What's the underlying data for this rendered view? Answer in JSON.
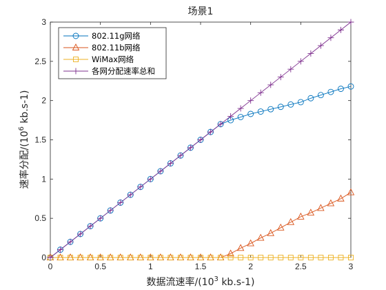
{
  "chart_data": {
    "type": "line",
    "title": "场景1",
    "xlabel": {
      "prefix": "数据流速率/(10",
      "sup": "3",
      "suffix": " kb.s-1)"
    },
    "ylabel": {
      "prefix": "速率分配/(10",
      "sup": "6",
      "suffix": " kb.s-1)"
    },
    "xlim": [
      0,
      3
    ],
    "ylim": [
      0,
      3
    ],
    "xticks": [
      0,
      0.5,
      1,
      1.5,
      2,
      2.5,
      3
    ],
    "yticks": [
      0,
      0.5,
      1,
      1.5,
      2,
      2.5,
      3
    ],
    "x": [
      0,
      0.1,
      0.2,
      0.3,
      0.4,
      0.5,
      0.6,
      0.7,
      0.8,
      0.9,
      1.0,
      1.1,
      1.2,
      1.3,
      1.4,
      1.5,
      1.6,
      1.7,
      1.8,
      1.9,
      2.0,
      2.1,
      2.2,
      2.3,
      2.4,
      2.5,
      2.6,
      2.7,
      2.8,
      2.9,
      3.0
    ],
    "series": [
      {
        "name": "802.11g网络",
        "color": "#0072BD",
        "marker": "circle",
        "values": [
          0,
          0.1,
          0.2,
          0.3,
          0.4,
          0.5,
          0.6,
          0.7,
          0.8,
          0.9,
          1.0,
          1.1,
          1.2,
          1.3,
          1.4,
          1.5,
          1.6,
          1.7,
          1.75,
          1.79,
          1.83,
          1.86,
          1.89,
          1.92,
          1.95,
          1.98,
          2.03,
          2.07,
          2.11,
          2.15,
          2.18
        ]
      },
      {
        "name": "802.11b网络",
        "color": "#D95319",
        "marker": "triangle",
        "values": [
          0,
          0,
          0,
          0,
          0,
          0,
          0,
          0,
          0,
          0,
          0,
          0,
          0,
          0,
          0,
          0,
          0,
          0,
          0.05,
          0.12,
          0.18,
          0.25,
          0.31,
          0.38,
          0.45,
          0.52,
          0.57,
          0.63,
          0.69,
          0.75,
          0.83
        ]
      },
      {
        "name": "WiMax网络",
        "color": "#EDB120",
        "marker": "square",
        "values": [
          0,
          0,
          0,
          0,
          0,
          0,
          0,
          0,
          0,
          0,
          0,
          0,
          0,
          0,
          0,
          0,
          0,
          0,
          0,
          0,
          0,
          0,
          0,
          0,
          0,
          0,
          0,
          0,
          0,
          0,
          0
        ]
      },
      {
        "name": "各网分配速率总和",
        "color": "#7E2F8E",
        "marker": "plus",
        "values": [
          0,
          0.1,
          0.2,
          0.3,
          0.4,
          0.5,
          0.6,
          0.7,
          0.8,
          0.9,
          1.0,
          1.1,
          1.2,
          1.3,
          1.4,
          1.5,
          1.6,
          1.7,
          1.8,
          1.9,
          2.0,
          2.1,
          2.2,
          2.3,
          2.4,
          2.5,
          2.6,
          2.7,
          2.8,
          2.9,
          3.0
        ]
      }
    ],
    "grid": false,
    "legend_position": "top-left"
  }
}
